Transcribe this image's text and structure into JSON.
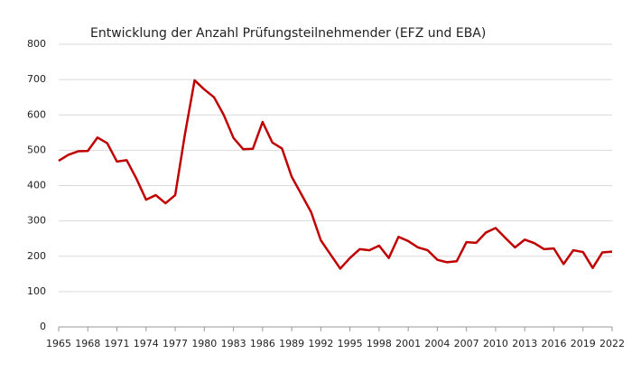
{
  "chart_data": {
    "type": "line",
    "title": "Entwicklung der Anzahl Prüfungsteilnehmender (EFZ und EBA)",
    "x": [
      1965,
      1966,
      1967,
      1968,
      1969,
      1970,
      1971,
      1972,
      1973,
      1974,
      1975,
      1976,
      1977,
      1978,
      1979,
      1980,
      1981,
      1982,
      1983,
      1984,
      1985,
      1986,
      1987,
      1988,
      1989,
      1990,
      1991,
      1992,
      1993,
      1994,
      1995,
      1996,
      1997,
      1998,
      1999,
      2000,
      2001,
      2002,
      2003,
      2004,
      2005,
      2006,
      2007,
      2008,
      2009,
      2010,
      2011,
      2012,
      2013,
      2014,
      2015,
      2016,
      2017,
      2018,
      2019,
      2020,
      2021,
      2022
    ],
    "values": [
      470,
      487,
      497,
      498,
      536,
      520,
      468,
      472,
      420,
      360,
      373,
      350,
      373,
      545,
      698,
      672,
      650,
      600,
      535,
      503,
      504,
      580,
      522,
      505,
      425,
      375,
      325,
      245,
      205,
      165,
      195,
      220,
      217,
      230,
      195,
      255,
      243,
      225,
      217,
      190,
      183,
      186,
      240,
      238,
      267,
      280,
      252,
      225,
      247,
      237,
      220,
      222,
      178,
      217,
      212,
      167,
      211,
      213
    ],
    "color": "#c00000",
    "xlim": [
      1965,
      2022
    ],
    "xticks": [
      1965,
      1968,
      1971,
      1974,
      1977,
      1980,
      1983,
      1986,
      1989,
      1992,
      1995,
      1998,
      2001,
      2004,
      2007,
      2010,
      2013,
      2016,
      2019,
      2022
    ],
    "ylim": [
      0,
      800
    ],
    "yticks": [
      0,
      100,
      200,
      300,
      400,
      500,
      600,
      700,
      800
    ],
    "grid": true
  }
}
